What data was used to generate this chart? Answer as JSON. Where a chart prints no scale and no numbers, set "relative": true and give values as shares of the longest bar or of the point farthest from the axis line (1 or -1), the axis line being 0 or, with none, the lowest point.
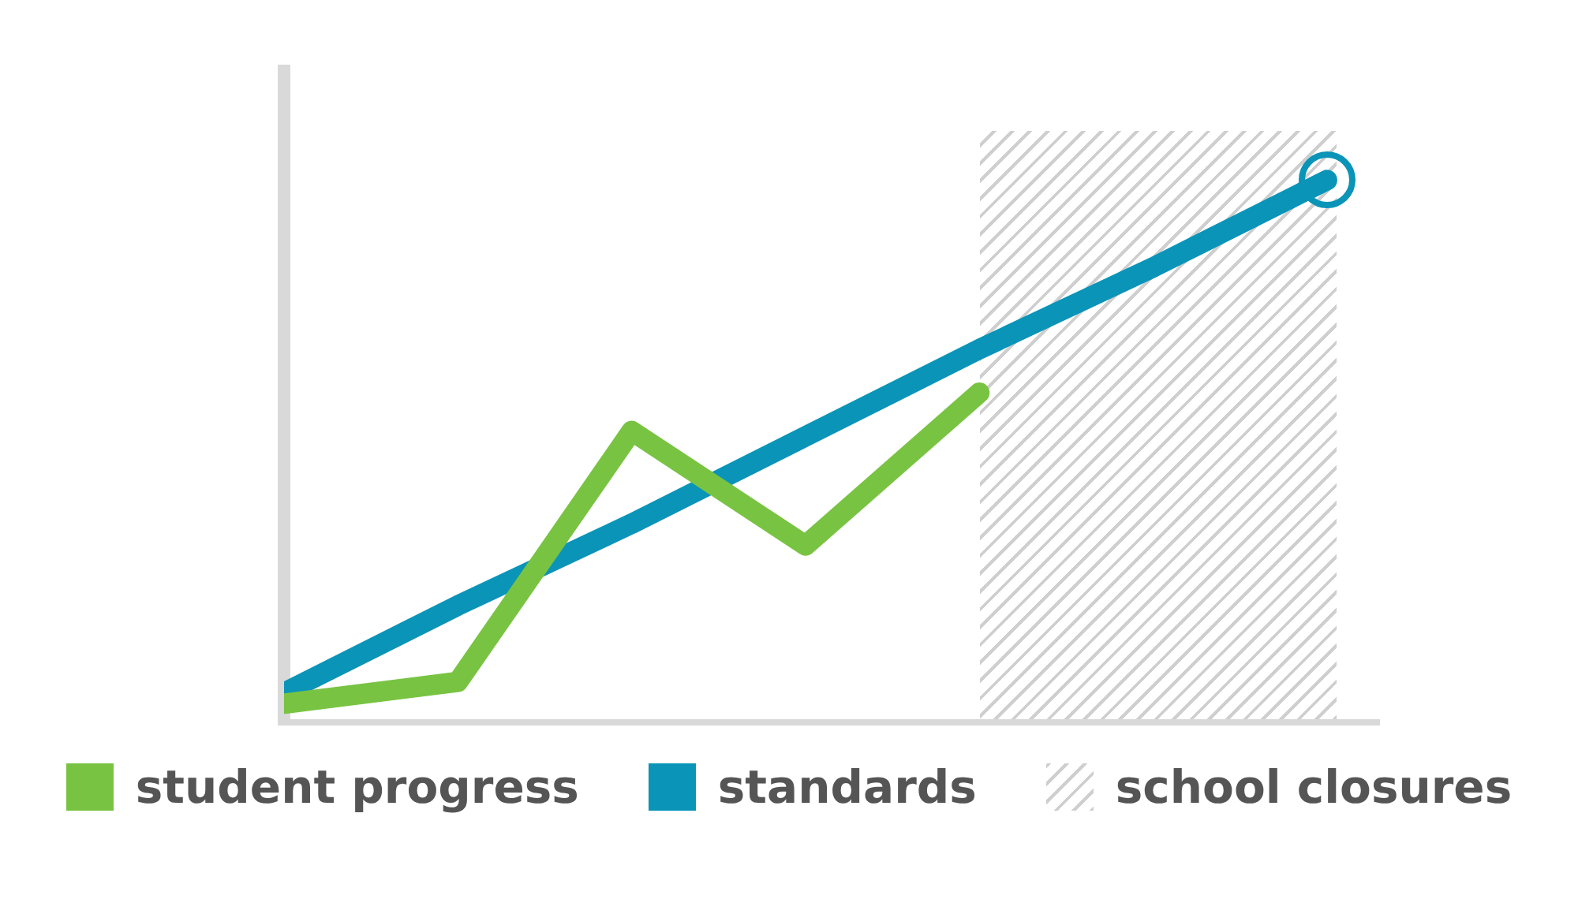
{
  "chart_data": {
    "type": "line",
    "relative": true,
    "categories": [
      null,
      null,
      null,
      null,
      null,
      null,
      null
    ],
    "tick_labels": false,
    "legend": "bottom",
    "grid": false,
    "series": [
      {
        "name": "student progress",
        "color": "#78c442",
        "values": [
          0.04,
          0.08,
          0.54,
          0.33,
          0.61,
          null,
          null
        ]
      },
      {
        "name": "standards",
        "color": "#0a94b8",
        "values": [
          0.06,
          0.22,
          0.37,
          0.53,
          0.69,
          0.84,
          1
        ]
      }
    ],
    "annotations": [
      "school closures"
    ]
  }
}
